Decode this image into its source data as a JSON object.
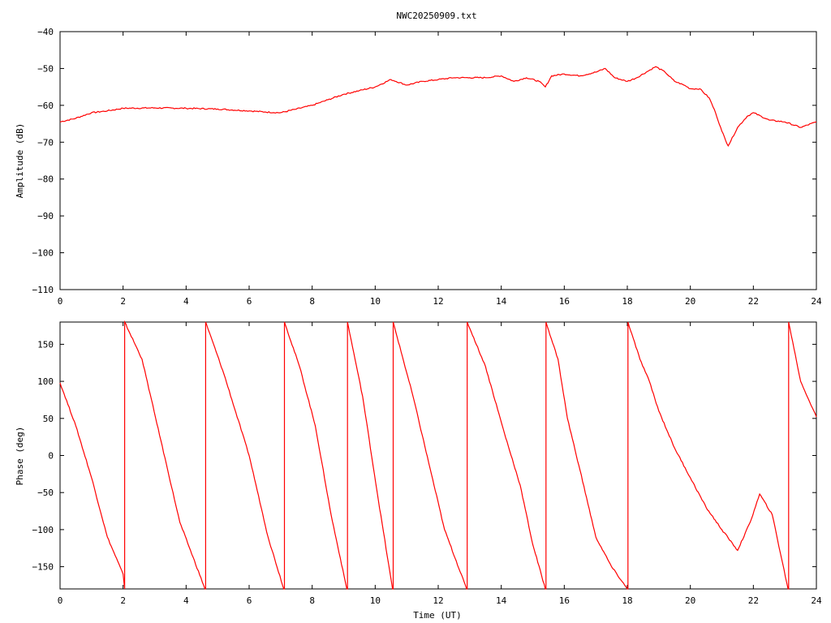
{
  "title": "NWC20250909.txt",
  "colors": {
    "series": "#ff0000",
    "axes": "#000000",
    "background": "#ffffff"
  },
  "chart_data": [
    {
      "type": "line",
      "title": "NWC20250909.txt",
      "xlabel": "",
      "ylabel": "Amplitude (dB)",
      "xlim": [
        0,
        24
      ],
      "ylim": [
        -110,
        -40
      ],
      "xticks": [
        0,
        2,
        4,
        6,
        8,
        10,
        12,
        14,
        16,
        18,
        20,
        22,
        24
      ],
      "xtick_labels": [
        "0",
        "2",
        "4",
        "6",
        "8",
        "10",
        "12",
        "14",
        "16",
        "18",
        "20",
        "22",
        "24"
      ],
      "yticks": [
        -40,
        -50,
        -60,
        -70,
        -80,
        -90,
        -100,
        -110
      ],
      "ytick_labels": [
        "−40",
        "−50",
        "−60",
        "−70",
        "−80",
        "−90",
        "−100",
        "−110"
      ],
      "grid": false,
      "series": [
        {
          "x": [
            0,
            0.5,
            1,
            1.5,
            2,
            3,
            4,
            5,
            6,
            6.5,
            7,
            7.5,
            8,
            8.5,
            9,
            9.5,
            10,
            10.5,
            11,
            11.5,
            12,
            12.5,
            13,
            13.5,
            14,
            14.4,
            14.8,
            15.2,
            15.4,
            15.6,
            16,
            16.5,
            17,
            17.3,
            17.6,
            18,
            18.3,
            18.6,
            18.9,
            19.2,
            19.5,
            19.8,
            20,
            20.3,
            20.6,
            20.8,
            21,
            21.2,
            21.5,
            21.8,
            22,
            22.5,
            23,
            23.5,
            24
          ],
          "y": [
            -64.5,
            -63.5,
            -62,
            -61.5,
            -60.8,
            -60.7,
            -60.8,
            -61,
            -61.5,
            -61.8,
            -62,
            -61,
            -60,
            -58.5,
            -57,
            -56,
            -55,
            -53,
            -54.5,
            -53.5,
            -53,
            -52.5,
            -52.5,
            -52.5,
            -52,
            -53.5,
            -52.5,
            -53.5,
            -55,
            -52,
            -51.5,
            -52,
            -51,
            -50,
            -52.5,
            -53.5,
            -52.5,
            -51,
            -49.5,
            -51,
            -53.5,
            -54.5,
            -55.5,
            -55.5,
            -58,
            -62,
            -67,
            -71,
            -66,
            -63,
            -62,
            -64,
            -64.5,
            -66,
            -64.5
          ]
        }
      ]
    },
    {
      "type": "line",
      "title": "",
      "xlabel": "Time (UT)",
      "ylabel": "Phase (deg)",
      "xlim": [
        0,
        24
      ],
      "ylim": [
        -180,
        180
      ],
      "xticks": [
        0,
        2,
        4,
        6,
        8,
        10,
        12,
        14,
        16,
        18,
        20,
        22,
        24
      ],
      "xtick_labels": [
        "0",
        "2",
        "4",
        "6",
        "8",
        "10",
        "12",
        "14",
        "16",
        "18",
        "20",
        "22",
        "24"
      ],
      "yticks": [
        150,
        100,
        50,
        0,
        -50,
        -100,
        -150
      ],
      "ytick_labels": [
        "150",
        "100",
        "50",
        "0",
        "−50",
        "−100",
        "−150"
      ],
      "grid": false,
      "series": [
        {
          "x": [
            0,
            0.5,
            1,
            1.5,
            2,
            2.05,
            2.05,
            2.6,
            3.2,
            3.8,
            4.6,
            4.62,
            4.62,
            5.2,
            6,
            6.6,
            7.1,
            7.12,
            7.12,
            7.6,
            8.1,
            8.6,
            9.1,
            9.12,
            9.12,
            9.6,
            10.1,
            10.55,
            10.57,
            10.57,
            11.2,
            11.7,
            12.2,
            12.9,
            12.92,
            12.92,
            13.5,
            14.1,
            14.6,
            15,
            15.4,
            15.42,
            15.42,
            15.8,
            16.1,
            16.5,
            17,
            17.5,
            18,
            18.02,
            18.02,
            18.4,
            18.7,
            19,
            19.5,
            20,
            20.5,
            21,
            21.5,
            21.9,
            22.2,
            22.6,
            23.1,
            23.12,
            23.12,
            23.5,
            24
          ],
          "y": [
            98,
            40,
            -30,
            -110,
            -160,
            -180,
            180,
            130,
            20,
            -90,
            -180,
            -180,
            180,
            110,
            0,
            -110,
            -180,
            -180,
            180,
            120,
            40,
            -80,
            -180,
            -180,
            180,
            80,
            -60,
            -180,
            -180,
            180,
            80,
            -10,
            -100,
            -180,
            -180,
            180,
            120,
            30,
            -40,
            -120,
            -180,
            -180,
            180,
            130,
            50,
            -20,
            -110,
            -150,
            -180,
            -180,
            180,
            130,
            100,
            60,
            10,
            -30,
            -70,
            -100,
            -128,
            -90,
            -52,
            -80,
            -180,
            -180,
            180,
            100,
            52
          ]
        }
      ]
    }
  ]
}
